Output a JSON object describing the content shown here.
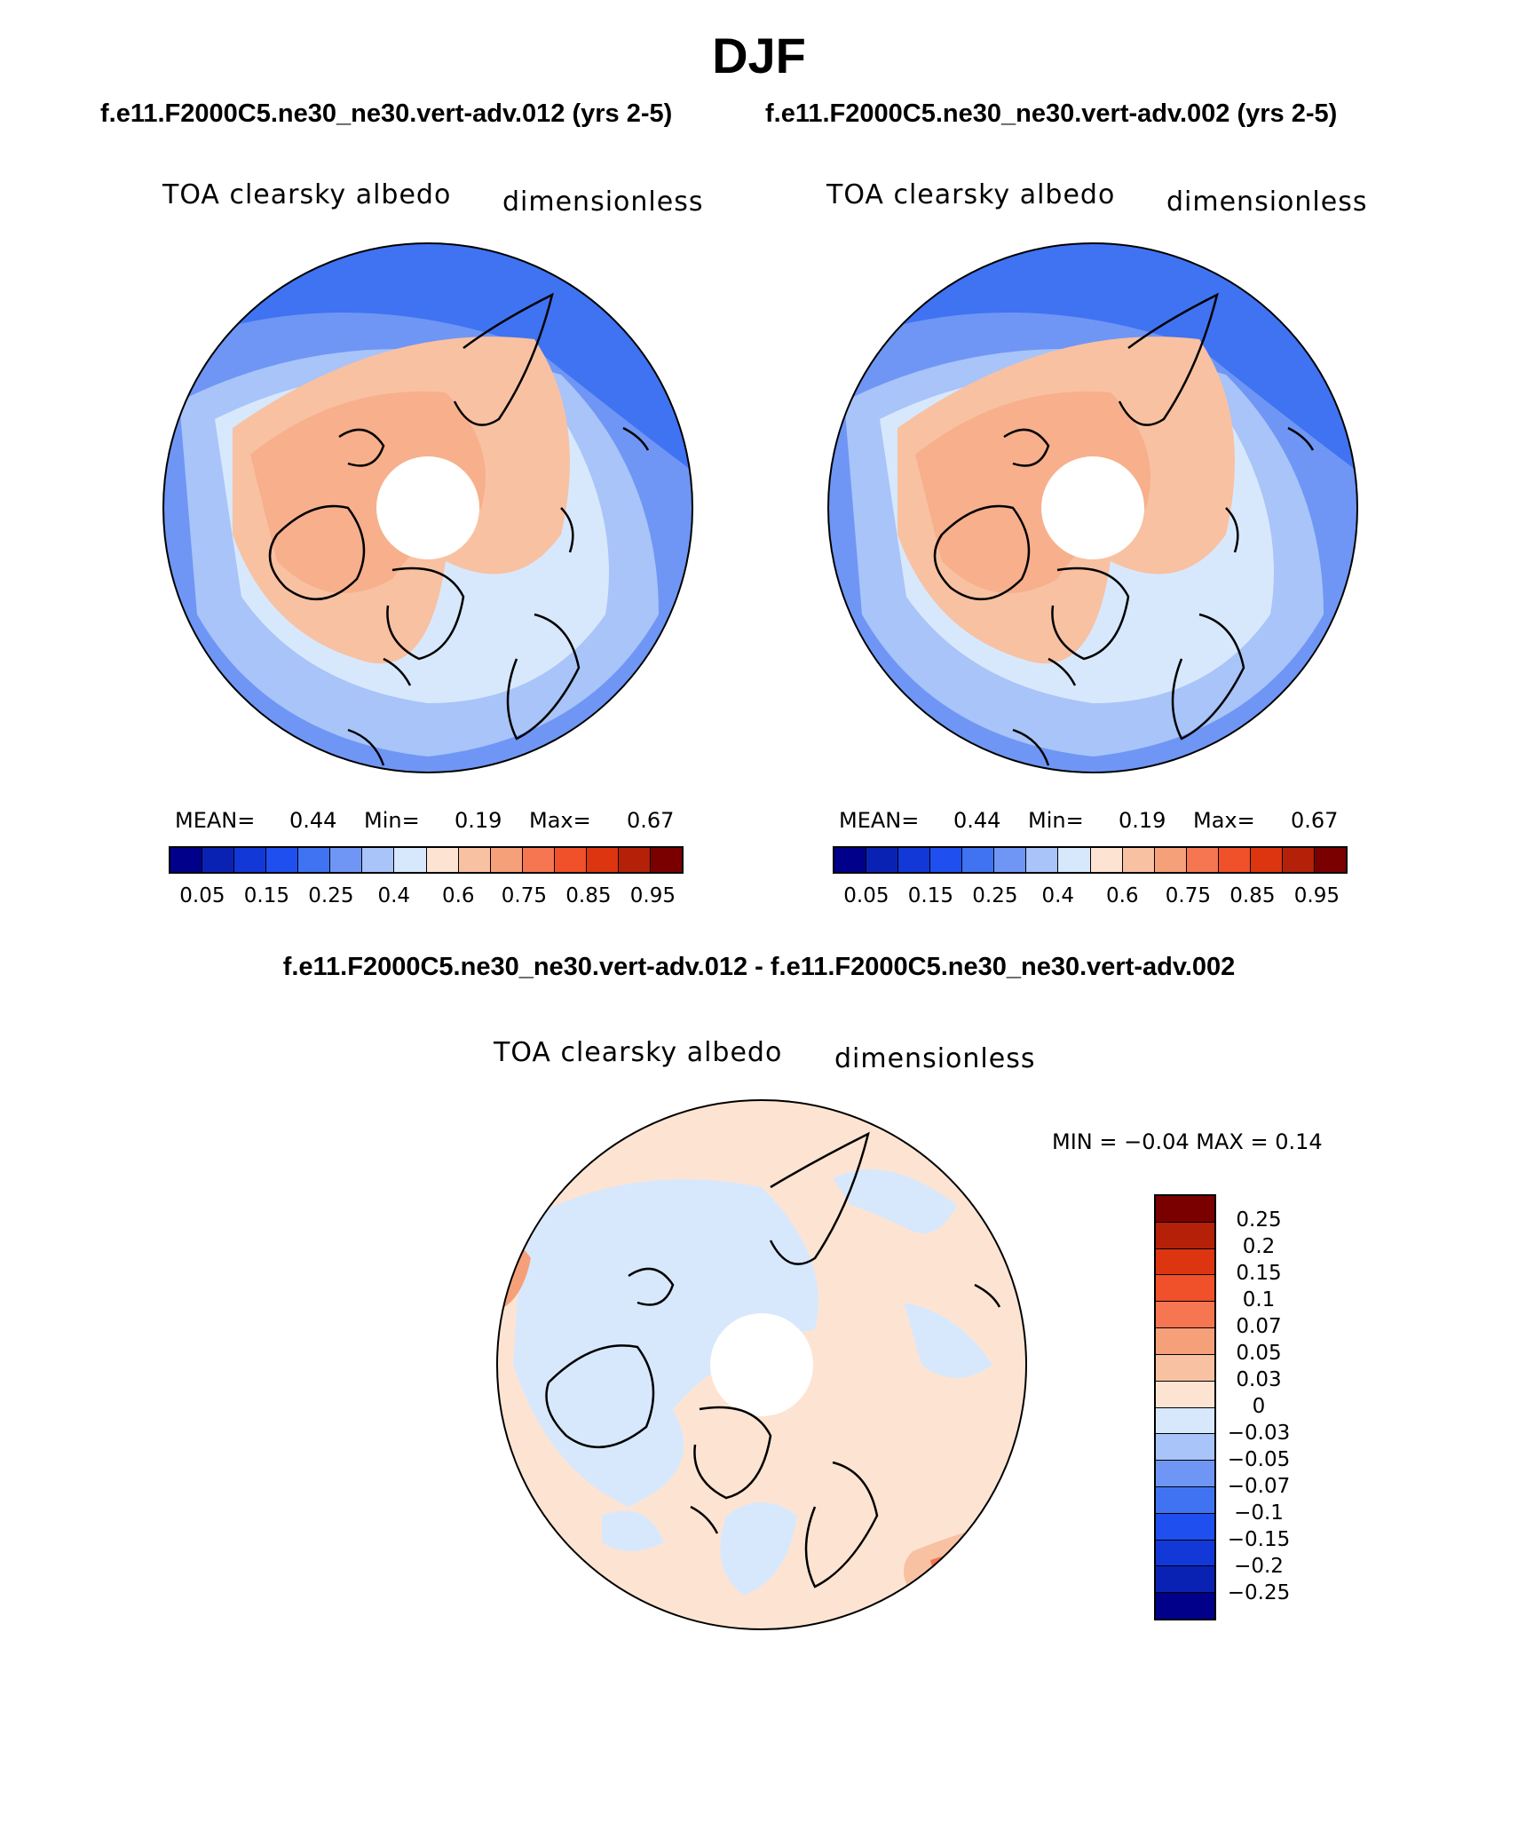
{
  "season": "DJF",
  "panels": [
    {
      "case_title": "f.e11.F2000C5.ne30_ne30.vert-adv.012 (yrs 2-5)",
      "variable": "TOA clearsky albedo",
      "units": "dimensionless",
      "stats": {
        "mean_label": "MEAN=",
        "mean": "0.44",
        "min_label": "Min=",
        "min": "0.19",
        "max_label": "Max=",
        "max": "0.67"
      }
    },
    {
      "case_title": "f.e11.F2000C5.ne30_ne30.vert-adv.002 (yrs 2-5)",
      "variable": "TOA clearsky albedo",
      "units": "dimensionless",
      "stats": {
        "mean_label": "MEAN=",
        "mean": "0.44",
        "min_label": "Min=",
        "min": "0.19",
        "max_label": "Max=",
        "max": "0.67"
      }
    }
  ],
  "colorbar": {
    "colors": [
      "#00008b",
      "#0a22b4",
      "#1238d8",
      "#1f4fee",
      "#3f73f2",
      "#6f96f4",
      "#a8c4f8",
      "#d8e8fc",
      "#fde4d2",
      "#f8c1a2",
      "#f6a07a",
      "#f57650",
      "#f0502a",
      "#dd3510",
      "#b42008",
      "#7a0000"
    ],
    "labels": [
      "0.05",
      "0.15",
      "0.25",
      "0.4",
      "0.6",
      "0.75",
      "0.85",
      "0.95"
    ]
  },
  "difference": {
    "title": "f.e11.F2000C5.ne30_ne30.vert-adv.012 - f.e11.F2000C5.ne30_ne30.vert-adv.002",
    "variable": "TOA clearsky albedo",
    "units": "dimensionless",
    "range_text": "MIN =   −0.04  MAX =     0.14",
    "colorbar": {
      "colors": [
        "#7a0000",
        "#b42008",
        "#dd3510",
        "#f0502a",
        "#f57650",
        "#f6a07a",
        "#f8c1a2",
        "#fde4d2",
        "#d8e8fc",
        "#a8c4f8",
        "#6f96f4",
        "#3f73f2",
        "#1f4fee",
        "#1238d8",
        "#0a22b4",
        "#00008b"
      ],
      "labels": [
        "0.25",
        "0.2",
        "0.15",
        "0.1",
        "0.07",
        "0.05",
        "0.03",
        "0",
        "−0.03",
        "−0.05",
        "−0.07",
        "−0.1",
        "−0.15",
        "−0.2",
        "−0.25"
      ]
    }
  }
}
